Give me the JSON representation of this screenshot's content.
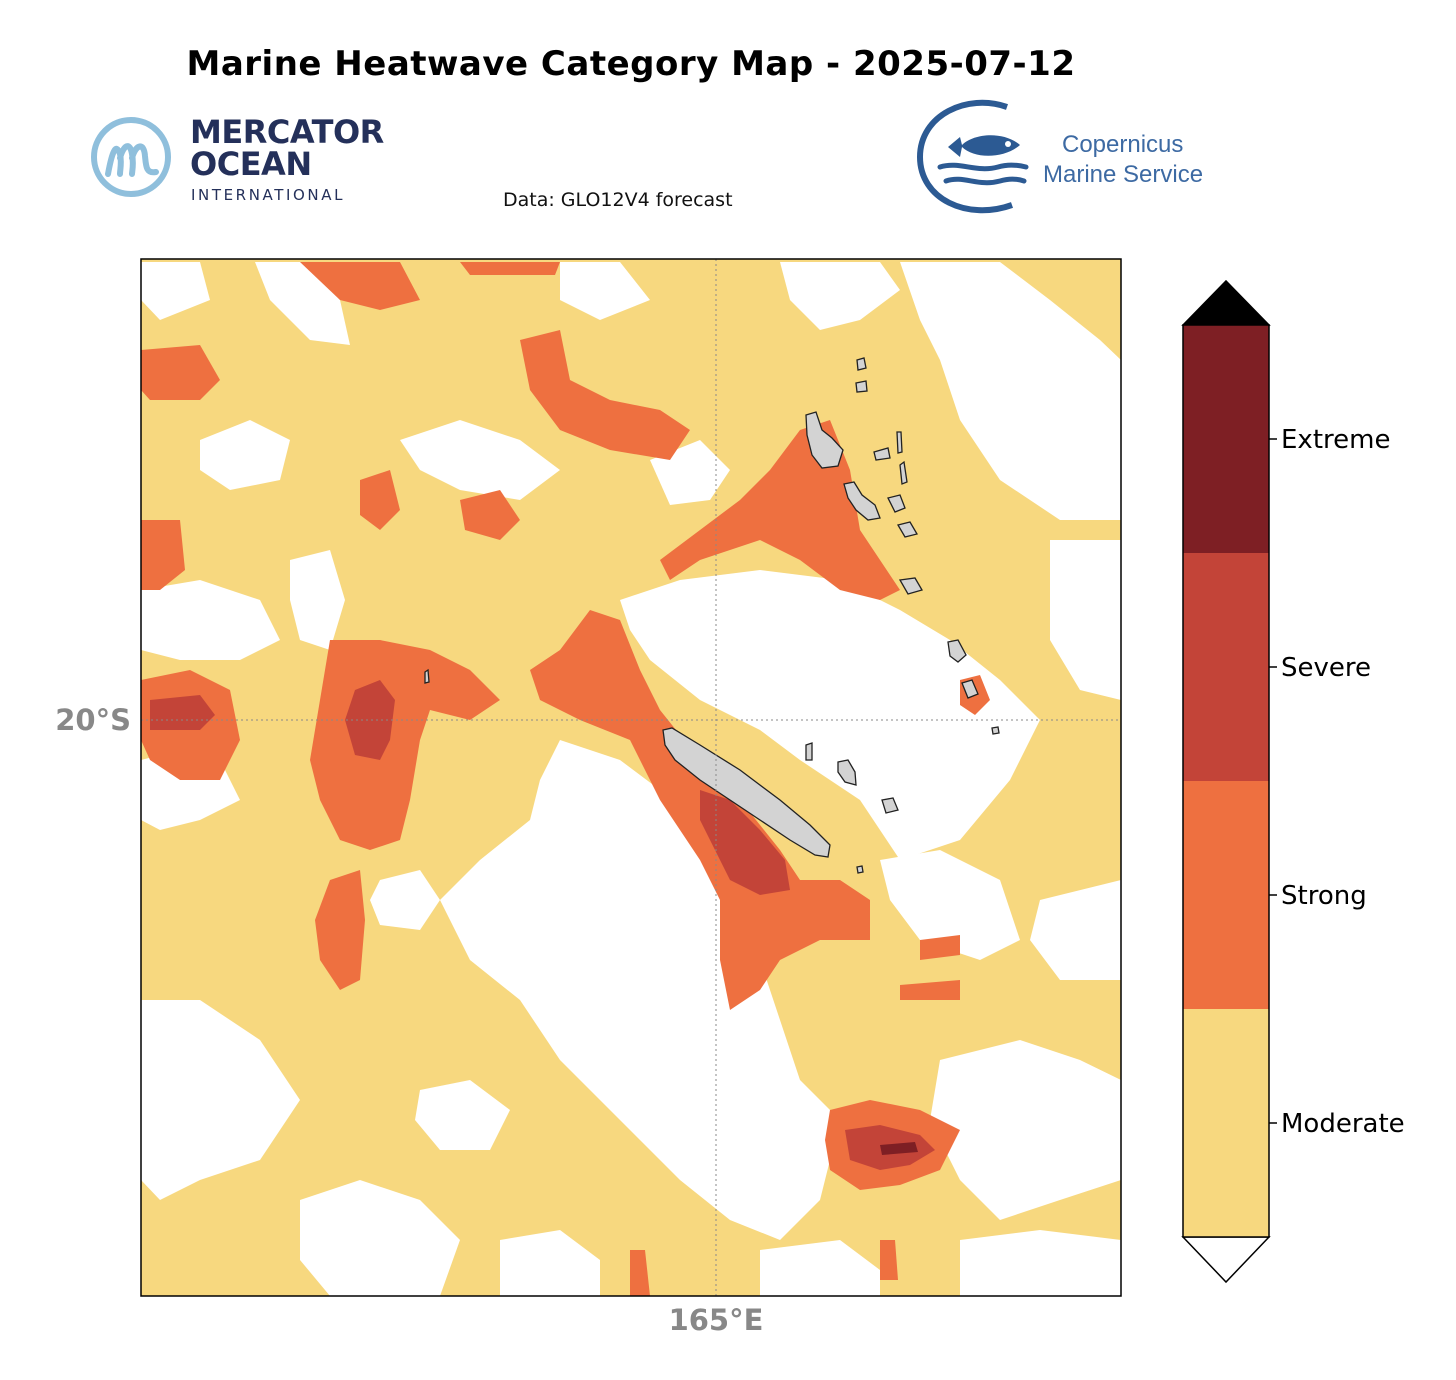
{
  "title": "Marine Heatwave Category Map - 2025-07-12",
  "subtitle": "Data: GLO12V4 forecast",
  "logos": {
    "mercator": {
      "line1": "MERCATOR",
      "line2": "OCEAN",
      "line3": "INTERNATIONAL",
      "icon": "mercator-m-icon"
    },
    "copernicus": {
      "line1": "Copernicus",
      "line2": "Marine Service",
      "icon": "fish-icon"
    }
  },
  "map": {
    "graticule": {
      "latitude_label": "20°S",
      "longitude_label": "165°E"
    },
    "land_color": "#d3d3d3",
    "no_heatwave_color": "#ffffff"
  },
  "colorbar": {
    "categories": [
      {
        "label": "Extreme",
        "color": "#7e1f24"
      },
      {
        "label": "Severe",
        "color": "#c34438"
      },
      {
        "label": "Strong",
        "color": "#ee7040"
      },
      {
        "label": "Moderate",
        "color": "#f7d87f"
      }
    ],
    "extend_max_color": "#000000",
    "extend_min_color": "#ffffff"
  }
}
